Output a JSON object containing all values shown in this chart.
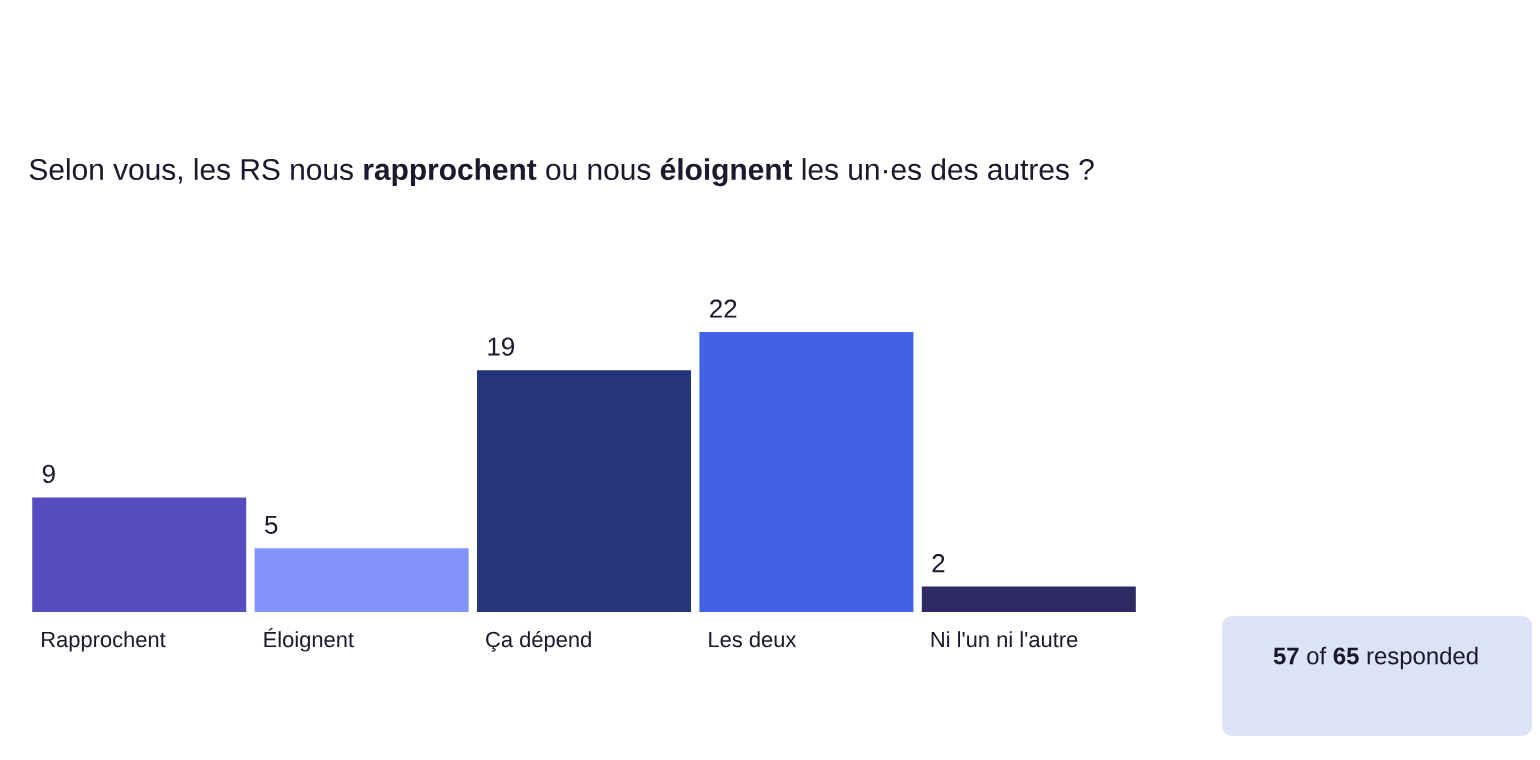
{
  "chart_data": {
    "type": "bar",
    "title": "Selon vous, les RS nous **rapprochent** ou nous **éloignent** les un·es des autres ?",
    "categories": [
      "Rapprochent",
      "Éloignent",
      "Ça dépend",
      "Les deux",
      "Ni l'un ni l'autre"
    ],
    "values": [
      9,
      5,
      19,
      22,
      2
    ],
    "colors": [
      "#574dc0",
      "#8394fa",
      "#25357a",
      "#4262e6",
      "#2f2a64"
    ],
    "data_labels": true,
    "annotations": [
      "**57** of **65** responded"
    ]
  }
}
